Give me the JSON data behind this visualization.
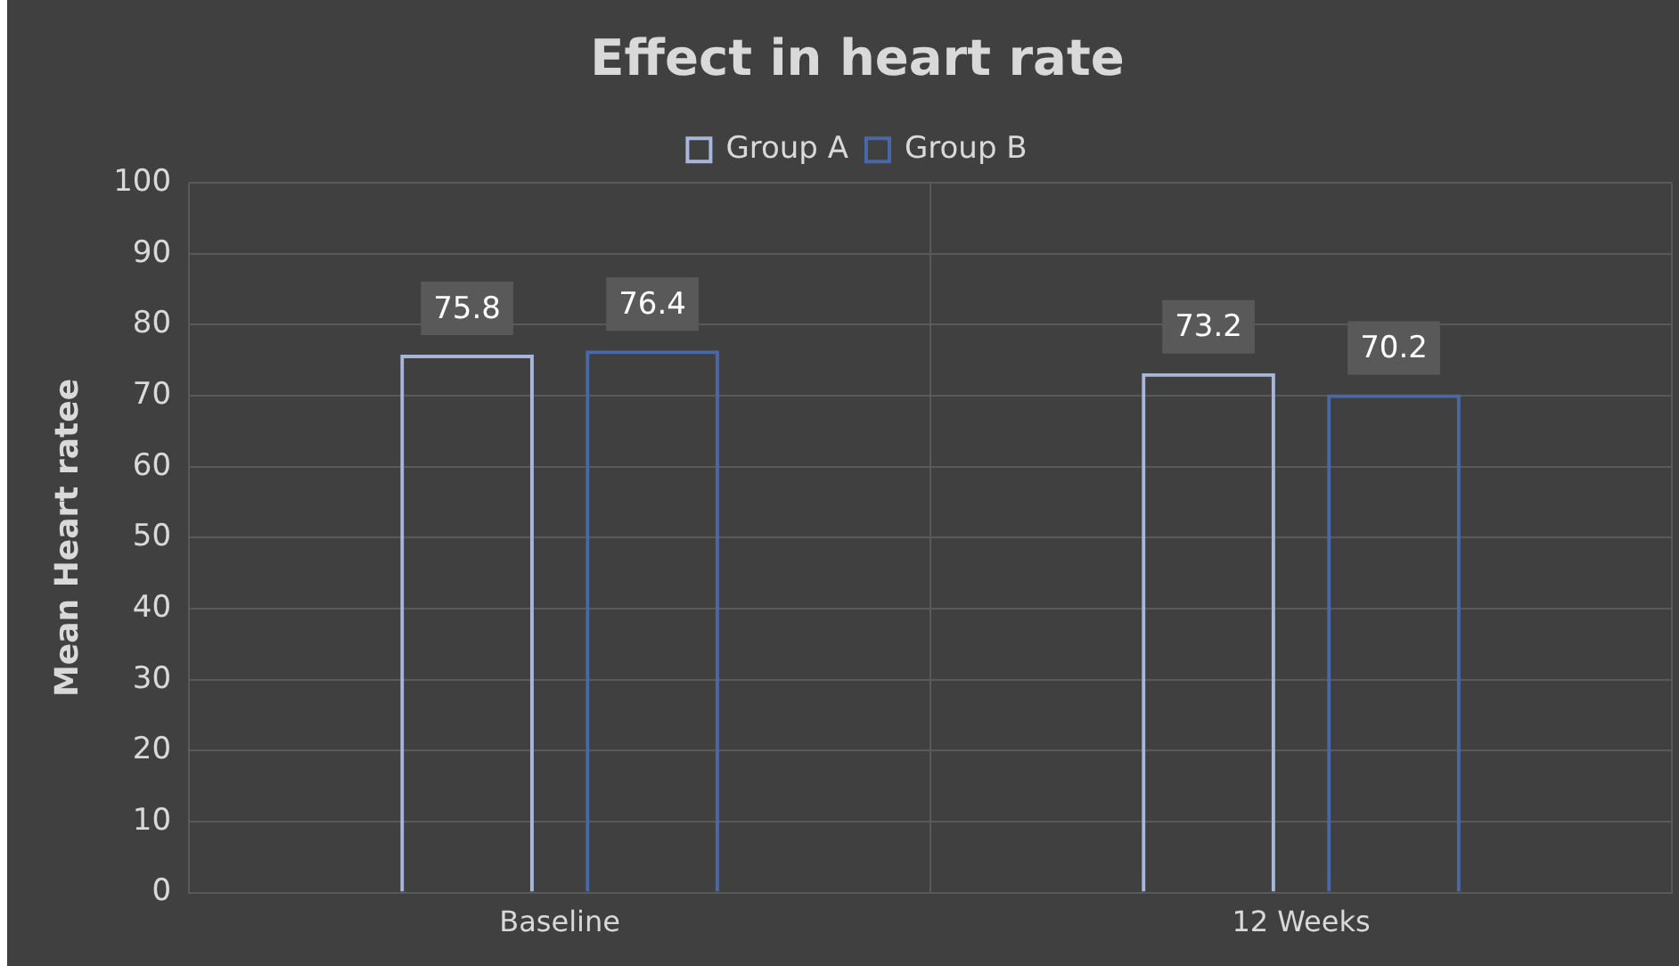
{
  "chart_data": {
    "type": "bar",
    "title": "Effect in heart rate",
    "ylabel": "Mean Heart ratee",
    "categories": [
      "Baseline",
      "12 Weeks"
    ],
    "series": [
      {
        "name": "Group A",
        "color": "#a9b6dc",
        "values": [
          75.8,
          73.2
        ]
      },
      {
        "name": "Group B",
        "color": "#4a67a8",
        "values": [
          76.4,
          70.2
        ]
      }
    ],
    "ylim": [
      0,
      100
    ],
    "yticks": [
      0,
      10,
      20,
      30,
      40,
      50,
      60,
      70,
      80,
      90,
      100
    ],
    "grid": true,
    "legend": "top",
    "data_labels": true
  }
}
